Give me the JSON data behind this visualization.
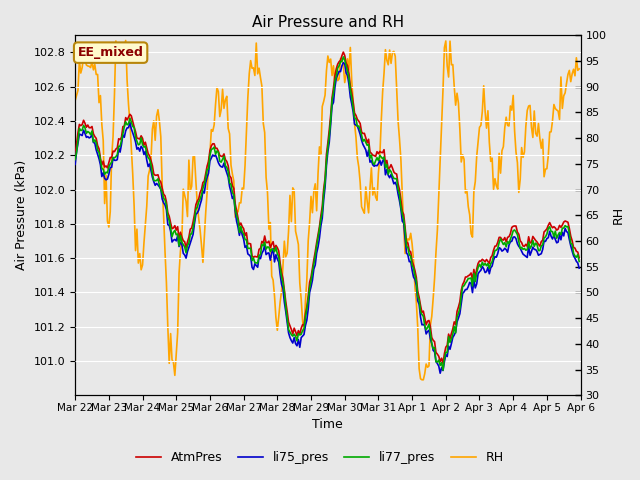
{
  "title": "Air Pressure and RH",
  "xlabel": "Time",
  "ylabel_left": "Air Pressure (kPa)",
  "ylabel_right": "RH",
  "ylim_left": [
    100.8,
    102.9
  ],
  "ylim_right": [
    30,
    100
  ],
  "yticks_left": [
    101.0,
    101.2,
    101.4,
    101.6,
    101.8,
    102.0,
    102.2,
    102.4,
    102.6,
    102.8
  ],
  "yticks_right": [
    30,
    35,
    40,
    45,
    50,
    55,
    60,
    65,
    70,
    75,
    80,
    85,
    90,
    95,
    100
  ],
  "xticklabels": [
    "Mar 22",
    "Mar 23",
    "Mar 24",
    "Mar 25",
    "Mar 26",
    "Mar 27",
    "Mar 28",
    "Mar 29",
    "Mar 30",
    "Mar 31",
    "Apr 1",
    "Apr 2",
    "Apr 3",
    "Apr 4",
    "Apr 5",
    "Apr 6"
  ],
  "annotation_text": "EE_mixed",
  "annotation_color": "#8B0000",
  "annotation_bg": "#FFFACD",
  "annotation_border": "#B8860B",
  "colors": {
    "AtmPres": "#CC0000",
    "li75_pres": "#0000CC",
    "li77_pres": "#00AA00",
    "RH": "#FFA500"
  },
  "line_widths": {
    "AtmPres": 1.2,
    "li75_pres": 1.2,
    "li77_pres": 1.2,
    "RH": 1.2
  },
  "legend_labels": [
    "AtmPres",
    "li75_pres",
    "li77_pres",
    "RH"
  ],
  "background_color": "#E8E8E8",
  "plot_bg_color": "#DCDCDC",
  "grid_color": "#FFFFFF",
  "seed": 42
}
